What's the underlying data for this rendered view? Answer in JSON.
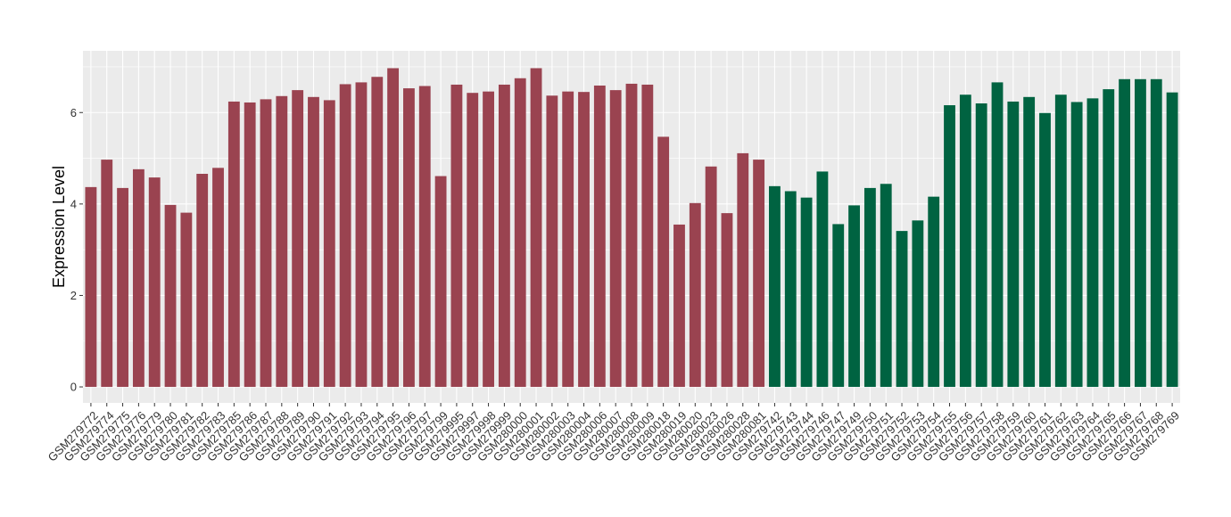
{
  "chart_data": {
    "type": "bar",
    "title": "",
    "xlabel": "",
    "ylabel": "Expression Level",
    "ylim": [
      -0.35,
      7.35
    ],
    "yticks": [
      0,
      2,
      4,
      6
    ],
    "grid": true,
    "legend": "none",
    "colors": {
      "group1": "#9A4350",
      "group2": "#006341",
      "panel": "#EBEBEB",
      "grid": "#FFFFFF"
    },
    "categories": [
      "GSM279772",
      "GSM279774",
      "GSM279775",
      "GSM279776",
      "GSM279779",
      "GSM279780",
      "GSM279781",
      "GSM279782",
      "GSM279783",
      "GSM279785",
      "GSM279786",
      "GSM279787",
      "GSM279788",
      "GSM279789",
      "GSM279790",
      "GSM279791",
      "GSM279792",
      "GSM279793",
      "GSM279794",
      "GSM279795",
      "GSM279796",
      "GSM279797",
      "GSM279799",
      "GSM279995",
      "GSM279997",
      "GSM279998",
      "GSM279999",
      "GSM280000",
      "GSM280001",
      "GSM280002",
      "GSM280003",
      "GSM280004",
      "GSM280006",
      "GSM280007",
      "GSM280008",
      "GSM280009",
      "GSM280018",
      "GSM280019",
      "GSM280020",
      "GSM280023",
      "GSM280026",
      "GSM280028",
      "GSM280081",
      "GSM279742",
      "GSM279743",
      "GSM279744",
      "GSM279746",
      "GSM279747",
      "GSM279749",
      "GSM279750",
      "GSM279751",
      "GSM279752",
      "GSM279753",
      "GSM279754",
      "GSM279755",
      "GSM279756",
      "GSM279757",
      "GSM279758",
      "GSM279759",
      "GSM279760",
      "GSM279761",
      "GSM279762",
      "GSM279763",
      "GSM279764",
      "GSM279765",
      "GSM279766",
      "GSM279767",
      "GSM279768",
      "GSM279769"
    ],
    "values": [
      4.37,
      4.97,
      4.35,
      4.76,
      4.58,
      3.98,
      3.81,
      4.66,
      4.79,
      6.24,
      6.22,
      6.29,
      6.36,
      6.49,
      6.34,
      6.27,
      6.62,
      6.66,
      6.78,
      6.97,
      6.53,
      6.58,
      4.61,
      6.61,
      6.43,
      6.46,
      6.61,
      6.75,
      6.97,
      6.37,
      6.46,
      6.45,
      6.59,
      6.49,
      6.63,
      6.61,
      5.47,
      3.55,
      4.02,
      4.82,
      3.8,
      5.11,
      4.97,
      4.39,
      4.28,
      4.14,
      4.71,
      3.56,
      3.97,
      4.35,
      4.44,
      3.41,
      3.64,
      4.16,
      6.16,
      6.39,
      6.2,
      6.66,
      6.24,
      6.34,
      5.99,
      6.39,
      6.23,
      6.31,
      6.51,
      6.73,
      6.73,
      6.73,
      6.44
    ],
    "group_split_index": 43
  }
}
